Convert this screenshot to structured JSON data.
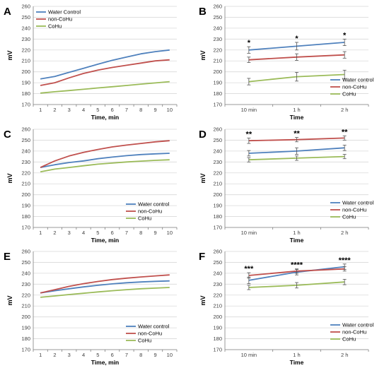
{
  "chart_data": [
    {
      "panel_label": "A",
      "type": "line",
      "x": [
        1,
        2,
        3,
        4,
        5,
        6,
        7,
        8,
        9,
        10
      ],
      "xlabel": "Time, min",
      "ylabel": "mV",
      "ylim": [
        170,
        260
      ],
      "yticks": [
        170,
        180,
        190,
        200,
        210,
        220,
        230,
        240,
        250,
        260
      ],
      "legend": "top-left",
      "grid": true,
      "error_bars": false,
      "series": [
        {
          "name": "Water Control",
          "color": "#4f81bd",
          "values": [
            193.5,
            195.8,
            199.5,
            203.2,
            207,
            210.5,
            213.5,
            216.5,
            218.5,
            220
          ]
        },
        {
          "name": "non-CoHu",
          "color": "#c0504d",
          "values": [
            187.5,
            190,
            194.5,
            198.5,
            201.5,
            204,
            206,
            208,
            210,
            211
          ]
        },
        {
          "name": "CoHu",
          "color": "#9bbb59",
          "values": [
            180.5,
            181.7,
            182.8,
            184,
            185.2,
            186.3,
            187.5,
            188.7,
            189.8,
            191
          ]
        }
      ]
    },
    {
      "panel_label": "B",
      "type": "line",
      "categories": [
        "10 min",
        "1 h",
        "2 h"
      ],
      "xlabel": "Time",
      "ylabel": "mV",
      "ylim": [
        170,
        260
      ],
      "yticks": [
        170,
        180,
        190,
        200,
        210,
        220,
        230,
        240,
        250,
        260
      ],
      "legend": "bottom-right",
      "grid": true,
      "error_bars": true,
      "annotations": [
        "*",
        "*",
        "*"
      ],
      "series": [
        {
          "name": "Water control",
          "color": "#4f81bd",
          "values": [
            220,
            223.5,
            227
          ],
          "errors": [
            3,
            3.5,
            3
          ]
        },
        {
          "name": "non-CoHu",
          "color": "#c0504d",
          "values": [
            211,
            213.5,
            215.5
          ],
          "errors": [
            2.5,
            3,
            3
          ]
        },
        {
          "name": "CoHu",
          "color": "#9bbb59",
          "values": [
            191,
            195.5,
            197.5
          ],
          "errors": [
            3,
            4,
            4
          ]
        }
      ]
    },
    {
      "panel_label": "C",
      "type": "line",
      "x": [
        1,
        2,
        3,
        4,
        5,
        6,
        7,
        8,
        9,
        10
      ],
      "xlabel": "Time, min",
      "ylabel": "mV",
      "ylim": [
        170,
        260
      ],
      "yticks": [
        170,
        180,
        190,
        200,
        210,
        220,
        230,
        240,
        250,
        260
      ],
      "legend": "bottom-right",
      "grid": true,
      "error_bars": false,
      "series": [
        {
          "name": "Water control",
          "color": "#4f81bd",
          "values": [
            225,
            227.5,
            229.5,
            231,
            233,
            234.5,
            235.8,
            236.8,
            237.5,
            238
          ]
        },
        {
          "name": "non-CoHu",
          "color": "#c0504d",
          "values": [
            225,
            231,
            235.5,
            238.8,
            241.5,
            243.8,
            245.5,
            247,
            248.5,
            249.5
          ]
        },
        {
          "name": "CoHu",
          "color": "#9bbb59",
          "values": [
            221,
            223.5,
            225,
            226.5,
            228,
            229,
            230,
            230.8,
            231.5,
            232
          ]
        }
      ]
    },
    {
      "panel_label": "D",
      "type": "line",
      "categories": [
        "10 min",
        "1 h",
        "2 h"
      ],
      "xlabel": "Time",
      "ylabel": "mV",
      "ylim": [
        170,
        260
      ],
      "yticks": [
        170,
        180,
        190,
        200,
        210,
        220,
        230,
        240,
        250,
        260
      ],
      "legend": "bottom-right",
      "grid": true,
      "error_bars": true,
      "annotations": [
        "**",
        "**",
        "**"
      ],
      "series": [
        {
          "name": "Water control",
          "color": "#4f81bd",
          "values": [
            238,
            240,
            243
          ],
          "errors": [
            2.5,
            3,
            2.5
          ]
        },
        {
          "name": "non-CoHu",
          "color": "#c0504d",
          "values": [
            249.5,
            250.5,
            252
          ],
          "errors": [
            2.5,
            2,
            2
          ]
        },
        {
          "name": "CoHu",
          "color": "#9bbb59",
          "values": [
            232,
            233.5,
            235
          ],
          "errors": [
            2,
            2,
            2
          ]
        }
      ]
    },
    {
      "panel_label": "E",
      "type": "line",
      "x": [
        1,
        2,
        3,
        4,
        5,
        6,
        7,
        8,
        9,
        10
      ],
      "xlabel": "Time, min",
      "ylabel": "mV",
      "ylim": [
        170,
        260
      ],
      "yticks": [
        170,
        180,
        190,
        200,
        210,
        220,
        230,
        240,
        250,
        260
      ],
      "legend": "bottom-right",
      "grid": true,
      "error_bars": false,
      "series": [
        {
          "name": "Water control",
          "color": "#4f81bd",
          "values": [
            222,
            224,
            225.8,
            227.5,
            229,
            230.3,
            231.3,
            232,
            232.6,
            233
          ]
        },
        {
          "name": "non-CoHu",
          "color": "#c0504d",
          "values": [
            222,
            225,
            228,
            230.5,
            232.5,
            234.2,
            235.5,
            236.6,
            237.6,
            238.5
          ]
        },
        {
          "name": "CoHu",
          "color": "#9bbb59",
          "values": [
            218,
            219.2,
            220.5,
            221.7,
            222.9,
            224,
            225,
            225.8,
            226.4,
            227
          ]
        }
      ]
    },
    {
      "panel_label": "F",
      "type": "line",
      "categories": [
        "10 min",
        "1 h",
        "2 h"
      ],
      "xlabel": "Time",
      "ylabel": "mV",
      "ylim": [
        170,
        260
      ],
      "yticks": [
        170,
        180,
        190,
        200,
        210,
        220,
        230,
        240,
        250,
        260
      ],
      "legend": "bottom-right",
      "grid": true,
      "error_bars": true,
      "annotations": [
        "***",
        "****",
        "****"
      ],
      "series": [
        {
          "name": "Water control",
          "color": "#4f81bd",
          "values": [
            233.5,
            241,
            246
          ],
          "errors": [
            3,
            2.5,
            2.5
          ]
        },
        {
          "name": "non-CoHu",
          "color": "#c0504d",
          "values": [
            238,
            242,
            244
          ],
          "errors": [
            2.5,
            2,
            2
          ]
        },
        {
          "name": "CoHu",
          "color": "#9bbb59",
          "values": [
            227,
            229,
            232
          ],
          "errors": [
            2,
            2.5,
            2.5
          ]
        }
      ]
    }
  ]
}
